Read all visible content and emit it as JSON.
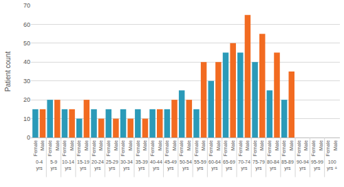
{
  "chart_data": {
    "type": "bar",
    "y_label": "Patient count",
    "categories": [
      "0-4 yrs",
      "5-9 yrs",
      "10-14 yrs",
      "15-19 yrs",
      "20-24 yrs",
      "25-29 yrs",
      "30-34 yrs",
      "35-39 yrs",
      "40-44 yrs",
      "45-49 yrs",
      "50-54 yrs",
      "55-59 yrs",
      "60-64 yrs",
      "65-69 yrs",
      "70-74 yrs",
      "75-79 yrs",
      "80-84 yrs",
      "85-89 yrs",
      "90-94 yrs",
      "95-99 yrs",
      "100 yrs +"
    ],
    "series": [
      {
        "name": "Female",
        "color": "#2b9ab8",
        "values": [
          15,
          20,
          15,
          10,
          15,
          15,
          15,
          15,
          15,
          15,
          25,
          15,
          30,
          45,
          45,
          40,
          25,
          20,
          0,
          0,
          0
        ]
      },
      {
        "name": "Male",
        "color": "#f26b21",
        "values": [
          15,
          20,
          15,
          20,
          10,
          10,
          10,
          10,
          15,
          20,
          20,
          40,
          40,
          50,
          65,
          55,
          45,
          35,
          0,
          0,
          0
        ]
      }
    ],
    "ylim": [
      0,
      70
    ],
    "yticks": [
      0,
      10,
      20,
      30,
      40,
      50,
      60,
      70
    ],
    "grid": true
  }
}
